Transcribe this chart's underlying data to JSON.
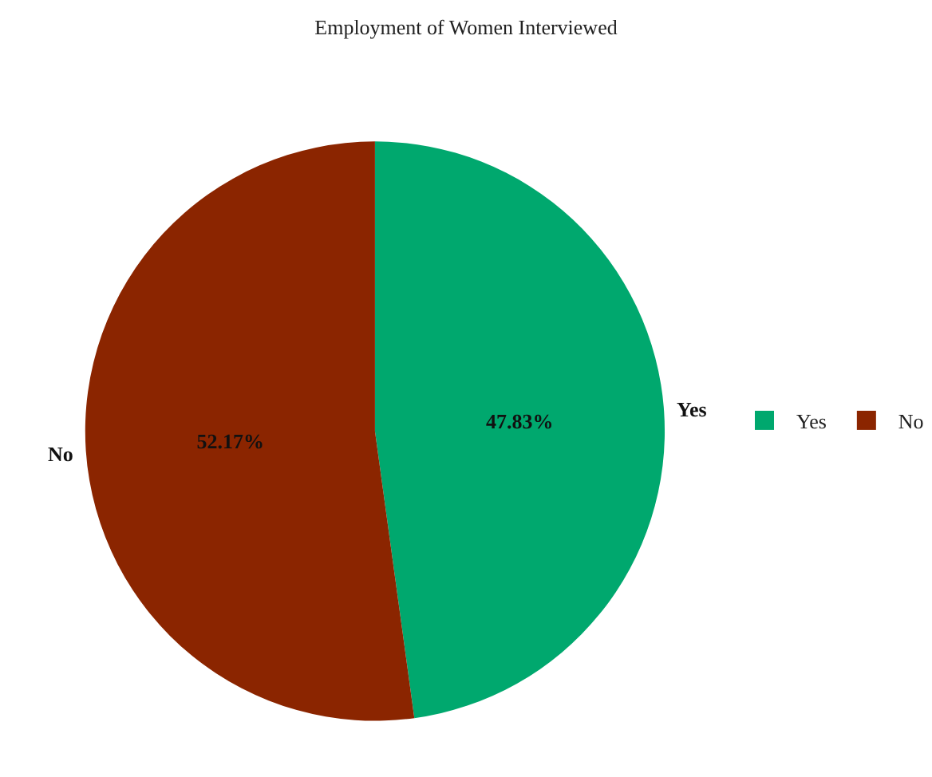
{
  "chart_data": {
    "type": "pie",
    "title": "Employment of Women Interviewed",
    "categories": [
      "Yes",
      "No"
    ],
    "values": [
      47.83,
      52.17
    ],
    "colors": [
      "#00a86e",
      "#8b2500"
    ],
    "value_labels": [
      "47.83%",
      "52.17%"
    ],
    "legend": "right"
  }
}
